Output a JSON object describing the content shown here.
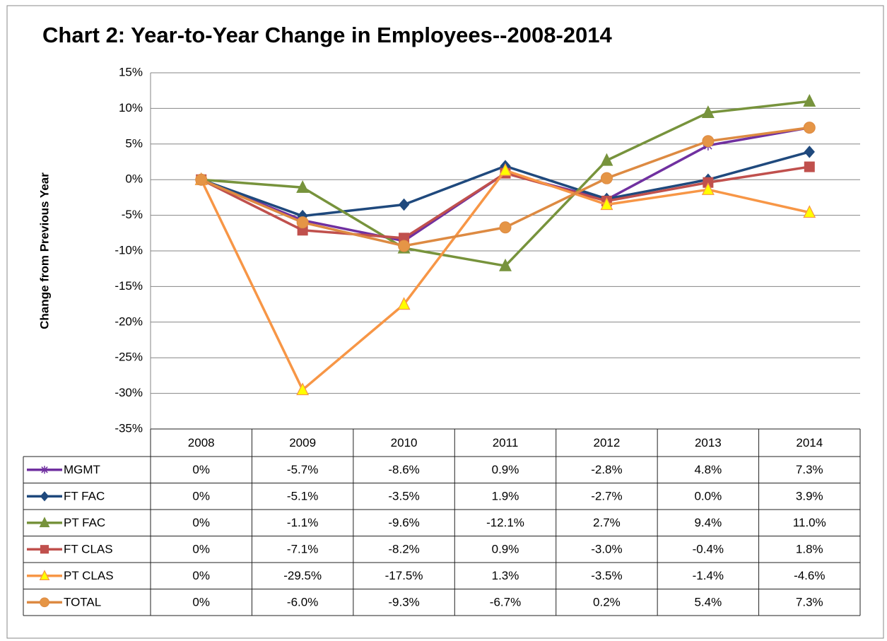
{
  "chart_data": {
    "type": "line",
    "title": "Chart 2:  Year-to-Year Change in Employees--2008-2014",
    "y_label": "Change from Previous Year",
    "categories": [
      "2008",
      "2009",
      "2010",
      "2011",
      "2012",
      "2013",
      "2014"
    ],
    "ylim": [
      -35,
      15
    ],
    "yticks": [
      {
        "value": -35,
        "label": "-35%"
      },
      {
        "value": -30,
        "label": "-30%"
      },
      {
        "value": -25,
        "label": "-25%"
      },
      {
        "value": -20,
        "label": "-20%"
      },
      {
        "value": -15,
        "label": "-15%"
      },
      {
        "value": -10,
        "label": "-10%"
      },
      {
        "value": -5,
        "label": "-5%"
      },
      {
        "value": 0,
        "label": "0%"
      },
      {
        "value": 5,
        "label": "5%"
      },
      {
        "value": 10,
        "label": "10%"
      },
      {
        "value": 15,
        "label": "15%"
      }
    ],
    "grid": true,
    "series": [
      {
        "name": "MGMT",
        "color": "#7030a0",
        "marker": "star",
        "marker_color": "#7030a0",
        "values": [
          0,
          -5.7,
          -8.6,
          0.9,
          -2.8,
          4.8,
          7.3
        ],
        "value_labels": [
          "0%",
          "-5.7%",
          "-8.6%",
          "0.9%",
          "-2.8%",
          "4.8%",
          "7.3%"
        ]
      },
      {
        "name": "FT FAC",
        "color": "#1f497d",
        "marker": "diamond",
        "marker_color": "#1f497d",
        "values": [
          0,
          -5.1,
          -3.5,
          1.9,
          -2.7,
          0.0,
          3.9
        ],
        "value_labels": [
          "0%",
          "-5.1%",
          "-3.5%",
          "1.9%",
          "-2.7%",
          "0.0%",
          "3.9%"
        ]
      },
      {
        "name": "PT FAC",
        "color": "#77933c",
        "marker": "triangle",
        "marker_color": "#77933c",
        "values": [
          0,
          -1.1,
          -9.6,
          -12.1,
          2.7,
          9.4,
          11.0
        ],
        "value_labels": [
          "0%",
          "-1.1%",
          "-9.6%",
          "-12.1%",
          "2.7%",
          "9.4%",
          "11.0%"
        ]
      },
      {
        "name": "FT CLAS",
        "color": "#c0504d",
        "marker": "square",
        "marker_color": "#c0504d",
        "values": [
          0,
          -7.1,
          -8.2,
          0.9,
          -3.0,
          -0.4,
          1.8
        ],
        "value_labels": [
          "0%",
          "-7.1%",
          "-8.2%",
          "0.9%",
          "-3.0%",
          "-0.4%",
          "1.8%"
        ]
      },
      {
        "name": "PT CLAS",
        "color": "#f79646",
        "marker": "triangle",
        "marker_color": "#ffff00",
        "values": [
          0,
          -29.5,
          -17.5,
          1.3,
          -3.5,
          -1.4,
          -4.6
        ],
        "value_labels": [
          "0%",
          "-29.5%",
          "-17.5%",
          "1.3%",
          "-3.5%",
          "-1.4%",
          "-4.6%"
        ]
      },
      {
        "name": "TOTAL",
        "color": "#dd8a42",
        "marker": "circle",
        "marker_color": "#e59546",
        "values": [
          0,
          -6.0,
          -9.3,
          -6.7,
          0.2,
          5.4,
          7.3
        ],
        "value_labels": [
          "0%",
          "-6.0%",
          "-9.3%",
          "-6.7%",
          "0.2%",
          "5.4%",
          "7.3%"
        ]
      }
    ]
  }
}
